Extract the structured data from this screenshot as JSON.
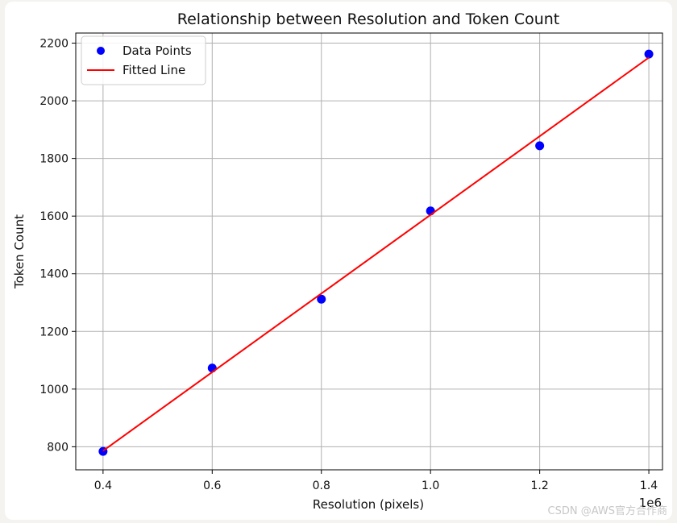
{
  "chart_data": {
    "type": "scatter",
    "title": "Relationship between Resolution and Token Count",
    "xlabel": "Resolution (pixels)",
    "ylabel": "Token Count",
    "x_offset_label": "1e6",
    "xlim": [
      0.35,
      1.425
    ],
    "ylim": [
      720,
      2235
    ],
    "x_ticks": [
      0.4,
      0.6,
      0.8,
      1.0,
      1.2,
      1.4
    ],
    "x_tick_labels": [
      "0.4",
      "0.6",
      "0.8",
      "1.0",
      "1.2",
      "1.4"
    ],
    "y_ticks": [
      800,
      1000,
      1200,
      1400,
      1600,
      1800,
      2000,
      2200
    ],
    "y_tick_labels": [
      "800",
      "1000",
      "1200",
      "1400",
      "1600",
      "1800",
      "2000",
      "2200"
    ],
    "grid": true,
    "legend_position": "top-left",
    "series": [
      {
        "name": "Data Points",
        "kind": "scatter",
        "color": "#0000ff",
        "points": [
          {
            "x": 0.4,
            "y": 784
          },
          {
            "x": 0.6,
            "y": 1073
          },
          {
            "x": 0.8,
            "y": 1312
          },
          {
            "x": 1.0,
            "y": 1618
          },
          {
            "x": 1.2,
            "y": 1844
          },
          {
            "x": 1.4,
            "y": 2162
          }
        ]
      },
      {
        "name": "Fitted Line",
        "kind": "line",
        "color": "#ff0000",
        "points": [
          {
            "x": 0.4,
            "y": 786
          },
          {
            "x": 1.4,
            "y": 2150
          }
        ]
      }
    ]
  },
  "watermark": "CSDN @AWS官方合作商"
}
